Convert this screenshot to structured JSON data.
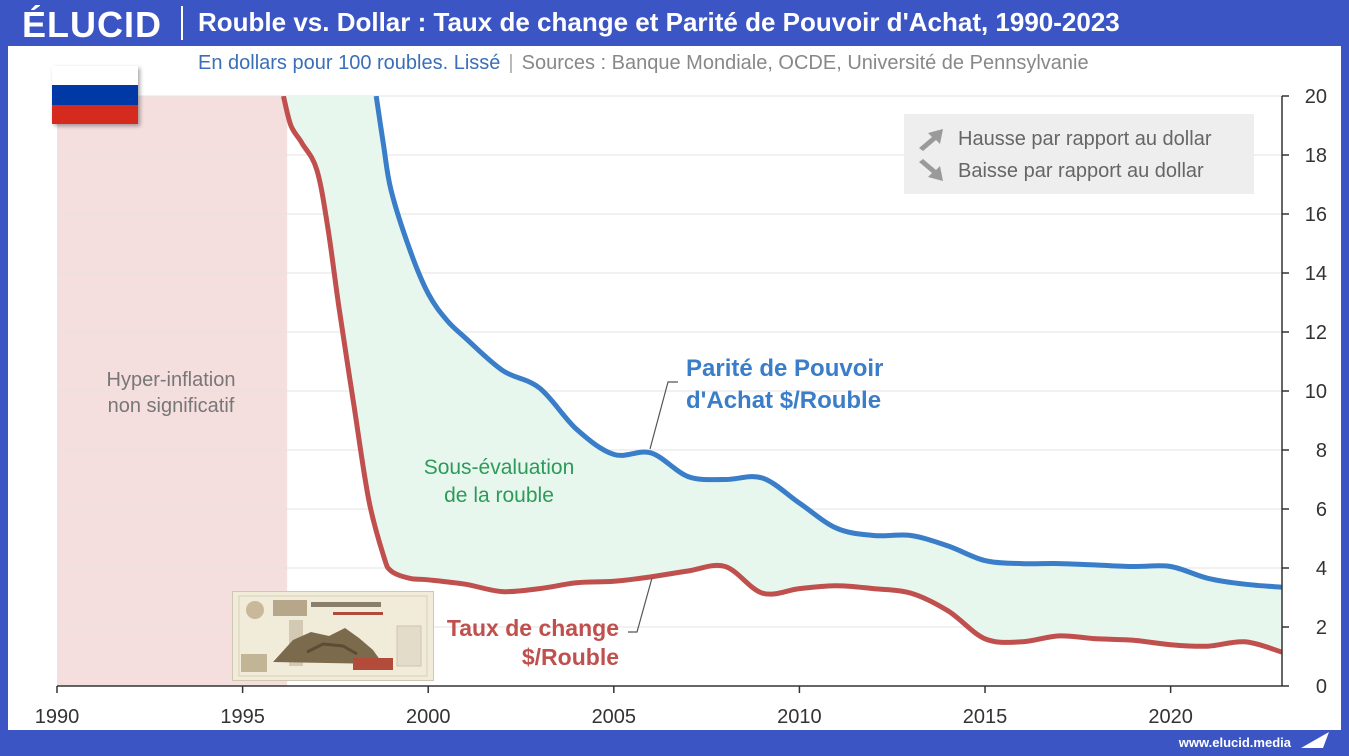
{
  "header": {
    "logo": "ÉLUCID",
    "title": "Rouble vs. Dollar : Taux de change et Parité de Pouvoir d'Achat, 1990-2023",
    "subtitle": "En dollars pour 100 roubles. Lissé",
    "subtitle_separator": "|",
    "sources": "Sources : Banque Mondiale, OCDE, Université de Pennsylvanie"
  },
  "footer": {
    "url": "www.elucid.media"
  },
  "legend": [
    {
      "label": "Hausse par rapport au dollar",
      "icon": "arrow-up-right-icon"
    },
    {
      "label": "Baisse par rapport au dollar",
      "icon": "arrow-down-right-icon"
    }
  ],
  "annotations": {
    "hyperinflation_line1": "Hyper-inflation",
    "hyperinflation_line2": "non significatif",
    "undervaluation_line1": "Sous-évaluation",
    "undervaluation_line2": "de la rouble",
    "ppp_line1": "Parité de Pouvoir",
    "ppp_line2": "d'Achat $/Rouble",
    "fx_line1": "Taux de change",
    "fx_line2": "$/Rouble"
  },
  "colors": {
    "brand": "#3b55c4",
    "ppp": "#3a7dc8",
    "fx": "#c0504d",
    "gap_fill": "#e8f7ee",
    "hyperinflation_fill": "#f5dede",
    "undervaluation_text": "#2e9a5a",
    "flag_white": "#ffffff",
    "flag_blue": "#0039a6",
    "flag_red": "#d52b1e"
  },
  "chart_data": {
    "type": "line",
    "xlim": [
      1990,
      2023
    ],
    "ylim": [
      0,
      20
    ],
    "x_ticks": [
      1990,
      1995,
      2000,
      2005,
      2010,
      2015,
      2020
    ],
    "y_ticks": [
      0,
      2,
      4,
      6,
      8,
      10,
      12,
      14,
      16,
      18,
      20
    ],
    "grid": true,
    "y_axis_side": "right",
    "hyperinflation_period": [
      1990,
      1996.2
    ],
    "series": [
      {
        "key": "ppp",
        "x": [
          1998.6,
          1998.8,
          1999,
          1999.5,
          2000,
          2000.5,
          2001,
          2002,
          2003,
          2004,
          2005,
          2006,
          2007,
          2008,
          2009,
          2010,
          2011,
          2012,
          2013,
          2014,
          2015,
          2016,
          2017,
          2018,
          2019,
          2020,
          2021,
          2022,
          2023
        ],
        "y": [
          20,
          18.3,
          16.8,
          14.8,
          13.3,
          12.4,
          11.8,
          10.7,
          10.1,
          8.7,
          7.85,
          7.9,
          7.1,
          7.0,
          7.05,
          6.2,
          5.35,
          5.1,
          5.1,
          4.75,
          4.25,
          4.15,
          4.15,
          4.1,
          4.05,
          4.05,
          3.65,
          3.45,
          3.35
        ]
      },
      {
        "key": "fx",
        "x": [
          1996.1,
          1996.3,
          1996.6,
          1997,
          1997.3,
          1997.6,
          1998,
          1998.4,
          1998.8,
          1999,
          1999.5,
          2000,
          2001,
          2002,
          2003,
          2004,
          2005,
          2006,
          2007,
          2008,
          2009,
          2010,
          2011,
          2012,
          2013,
          2014,
          2015,
          2016,
          2017,
          2018,
          2019,
          2020,
          2021,
          2022,
          2023
        ],
        "y": [
          20,
          19.0,
          18.4,
          17.5,
          15.5,
          12.8,
          9.5,
          6.3,
          4.4,
          3.9,
          3.65,
          3.6,
          3.45,
          3.2,
          3.3,
          3.5,
          3.55,
          3.7,
          3.9,
          4.05,
          3.15,
          3.3,
          3.4,
          3.3,
          3.15,
          2.55,
          1.6,
          1.5,
          1.7,
          1.6,
          1.55,
          1.4,
          1.35,
          1.5,
          1.15
        ]
      }
    ]
  }
}
